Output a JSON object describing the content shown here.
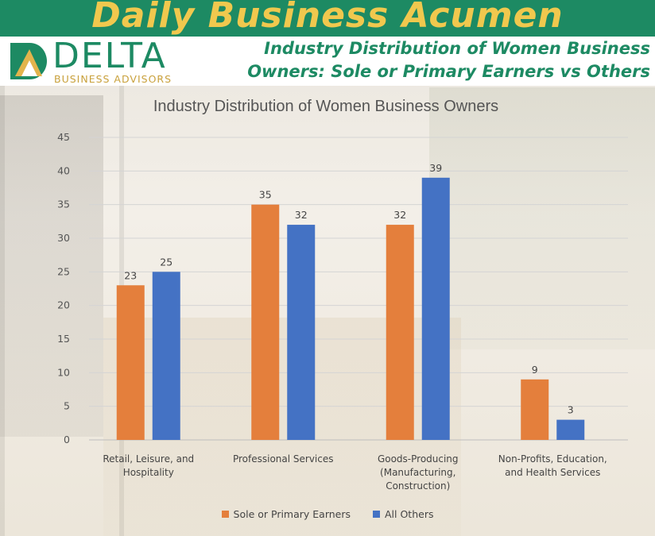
{
  "banner": {
    "title": "Daily Business Acumen"
  },
  "logo": {
    "word": "DELTA",
    "sub": "BUSINESS ADVISORS"
  },
  "subtitle": {
    "line1": "Industry Distribution of Women Business",
    "line2": "Owners: Sole or  Primary Earners vs Others"
  },
  "colors": {
    "banner": "#1d8a63",
    "banner_text": "#f0c84e",
    "sole": "#e47f3c",
    "others": "#4472c4"
  },
  "chart_data": {
    "type": "bar",
    "title": "Industry Distribution of Women Business Owners",
    "categories": [
      [
        "Retail, Leisure, and",
        "Hospitality"
      ],
      [
        "Professional Services"
      ],
      [
        "Goods-Producing",
        "(Manufacturing,",
        "Construction)"
      ],
      [
        "Non-Profits, Education,",
        "and Health Services"
      ]
    ],
    "series": [
      {
        "name": "Sole or Primary Earners",
        "color": "#e47f3c",
        "values": [
          23,
          35,
          32,
          9
        ]
      },
      {
        "name": "All Others",
        "color": "#4472c4",
        "values": [
          25,
          32,
          39,
          3
        ]
      }
    ],
    "ylim": [
      0,
      45
    ],
    "yticks": [
      0,
      5,
      10,
      15,
      20,
      25,
      30,
      35,
      40,
      45
    ],
    "grid": true,
    "legend": "bottom"
  }
}
